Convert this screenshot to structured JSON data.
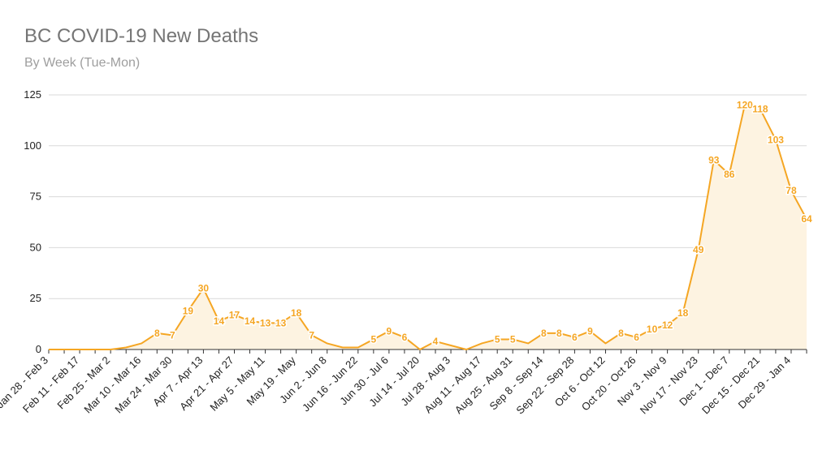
{
  "chart_data": {
    "type": "area",
    "title": "BC COVID-19 New Deaths",
    "subtitle": "By Week (Tue-Mon)",
    "xlabel": "",
    "ylabel": "",
    "ylim": [
      0,
      125
    ],
    "yticks": [
      0,
      25,
      50,
      75,
      100,
      125
    ],
    "grid": true,
    "legend": "none",
    "colors": {
      "series": "#f5a623",
      "fill": "#fdf3e1",
      "grid": "#d9d9d9",
      "axis": "#333333",
      "text": "#222222"
    },
    "tick_labels": [
      "Jan 28 - Feb 3",
      "Feb 11 - Feb 17",
      "Feb 25 - Mar 2",
      "Mar 10 - Mar 16",
      "Mar 24 - Mar 30",
      "Apr 7 - Apr 13",
      "Apr 21 - Apr 27",
      "May 5 - May 11",
      "May 19 - May",
      "Jun 2 - Jun 8",
      "Jun 16 - Jun 22",
      "Jun 30 - Jul 6",
      "Jul 14 - Jul 20",
      "Jul 28 - Aug 3",
      "Aug 11 - Aug 17",
      "Aug 25 - Aug 31",
      "Sep 8 - Sep 14",
      "Sep 22 - Sep 28",
      "Oct 6 - Oct 12",
      "Oct 20 - Oct 26",
      "Nov 3 - Nov 9",
      "Nov 17 - Nov 23",
      "Dec 1 - Dec 7",
      "Dec 15 - Dec 21",
      "Dec 29 - Jan 4"
    ],
    "values": [
      0,
      0,
      0,
      0,
      0,
      1,
      3,
      8,
      7,
      19,
      30,
      14,
      17,
      14,
      13,
      13,
      18,
      7,
      3,
      1,
      1,
      5,
      9,
      6,
      0,
      4,
      2,
      0,
      3,
      5,
      5,
      3,
      8,
      8,
      6,
      9,
      3,
      8,
      6,
      10,
      12,
      18,
      49,
      93,
      86,
      120,
      118,
      103,
      78,
      64
    ],
    "labeled_points": [
      7,
      8,
      9,
      10,
      11,
      12,
      13,
      14,
      15,
      16,
      17,
      21,
      22,
      23,
      25,
      29,
      30,
      32,
      33,
      34,
      35,
      37,
      38,
      39,
      40,
      41,
      42,
      43,
      44,
      45,
      46,
      47,
      48,
      49
    ]
  }
}
